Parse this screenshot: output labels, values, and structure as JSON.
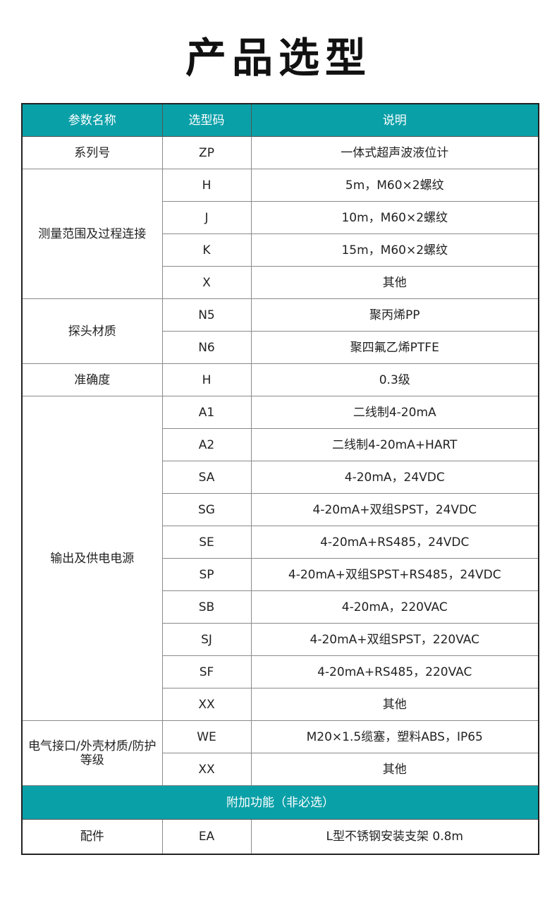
{
  "title": "产品选型",
  "colors": {
    "header_bg": "#0aa0a8",
    "header_text": "#ffffff"
  },
  "table": {
    "headers": [
      "参数名称",
      "选型码",
      "说明"
    ],
    "groups": [
      {
        "name": "系列号",
        "rows": [
          {
            "code": "ZP",
            "desc": "一体式超声波液位计"
          }
        ]
      },
      {
        "name": "测量范围及过程连接",
        "rows": [
          {
            "code": "H",
            "desc": "5m，M60×2螺纹"
          },
          {
            "code": "J",
            "desc": "10m，M60×2螺纹"
          },
          {
            "code": "K",
            "desc": "15m，M60×2螺纹"
          },
          {
            "code": "X",
            "desc": "其他"
          }
        ]
      },
      {
        "name": "探头材质",
        "rows": [
          {
            "code": "N5",
            "desc": "聚丙烯PP"
          },
          {
            "code": "N6",
            "desc": "聚四氟乙烯PTFE"
          }
        ]
      },
      {
        "name": "准确度",
        "rows": [
          {
            "code": "H",
            "desc": "0.3级"
          }
        ]
      },
      {
        "name": "输出及供电电源",
        "rows": [
          {
            "code": "A1",
            "desc": "二线制4-20mA"
          },
          {
            "code": "A2",
            "desc": "二线制4-20mA+HART"
          },
          {
            "code": "SA",
            "desc": "4-20mA，24VDC"
          },
          {
            "code": "SG",
            "desc": "4-20mA+双组SPST，24VDC"
          },
          {
            "code": "SE",
            "desc": "4-20mA+RS485，24VDC"
          },
          {
            "code": "SP",
            "desc": "4-20mA+双组SPST+RS485，24VDC"
          },
          {
            "code": "SB",
            "desc": "4-20mA，220VAC"
          },
          {
            "code": "SJ",
            "desc": "4-20mA+双组SPST，220VAC"
          },
          {
            "code": "SF",
            "desc": "4-20mA+RS485，220VAC"
          },
          {
            "code": "XX",
            "desc": "其他"
          }
        ]
      },
      {
        "name": "电气接口/外壳材质/防护等级",
        "rows": [
          {
            "code": "WE",
            "desc": "M20×1.5缆塞，塑料ABS，IP65"
          },
          {
            "code": "XX",
            "desc": "其他"
          }
        ]
      }
    ],
    "additional_section": "附加功能（非必选）",
    "additional_groups": [
      {
        "name": "配件",
        "rows": [
          {
            "code": "EA",
            "desc": "L型不锈钢安装支架 0.8m"
          }
        ]
      }
    ]
  }
}
